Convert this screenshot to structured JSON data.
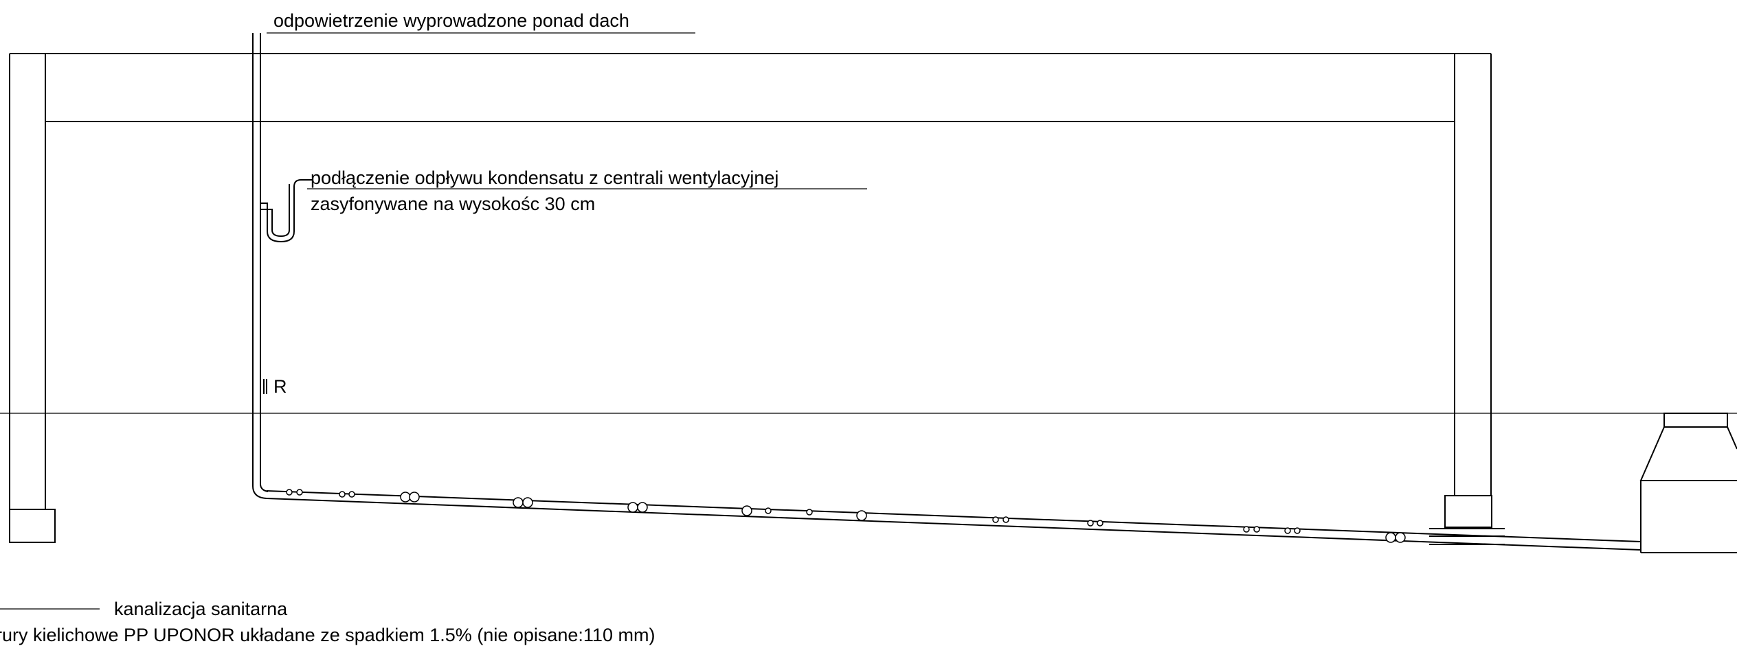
{
  "annotations": {
    "vent_label": "odpowietrzenie wyprowadzone ponad dach",
    "condensate_line1": "podłączenie odpływu kondensatu z centrali wentylacyjnej",
    "condensate_line2": "zasyfonywane na wysokośc 30 cm",
    "cleanout_label": "R"
  },
  "legend": {
    "line_label": "kanalizacja sanitarna",
    "pipe_note": "rury kielichowe PP UPONOR układane ze spadkiem 1.5% (nie opisane:110 mm)"
  }
}
